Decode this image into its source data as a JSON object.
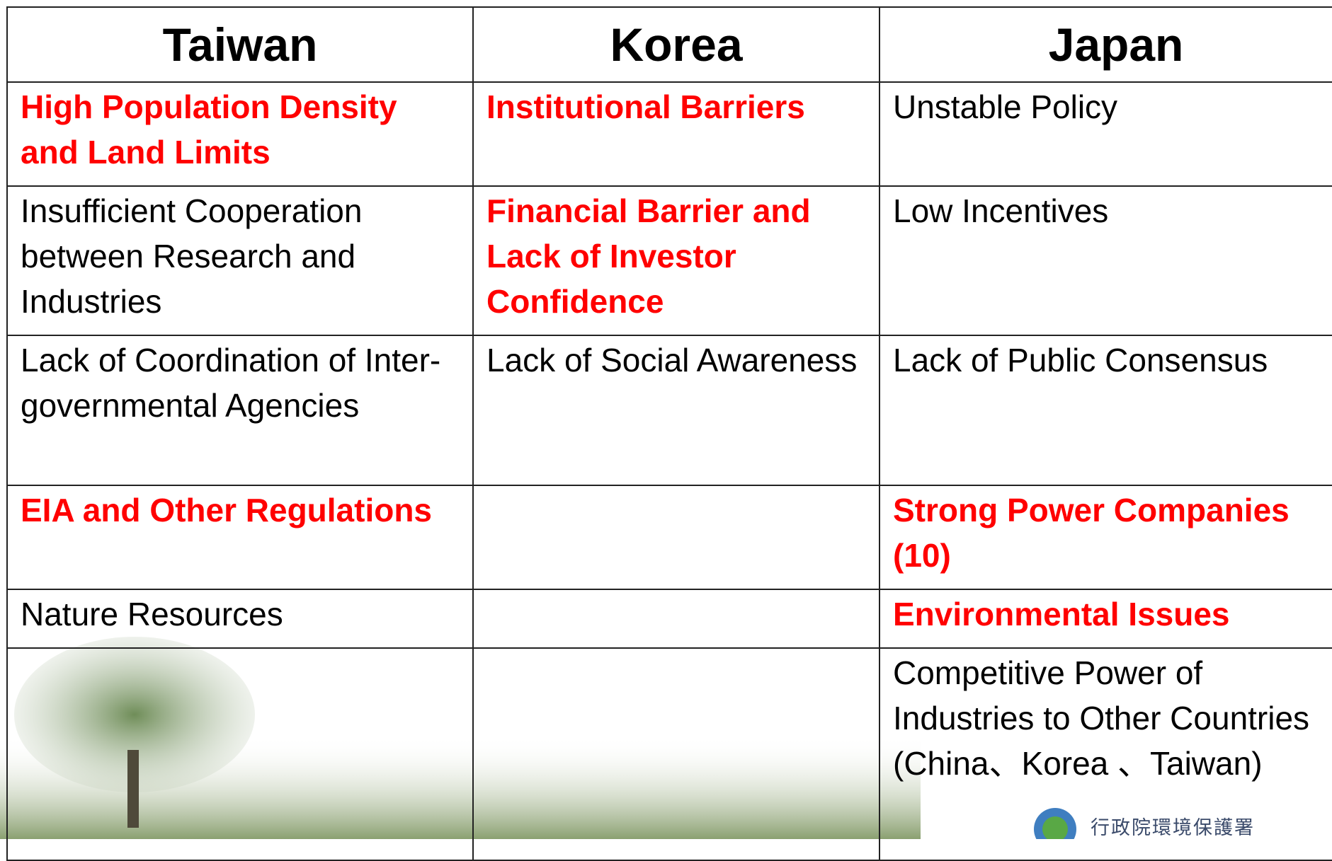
{
  "table": {
    "header": [
      "Taiwan",
      "Korea",
      "Japan"
    ],
    "rows": [
      [
        {
          "text": "High Population Density and Land Limits",
          "highlight": true
        },
        {
          "text": "Institutional Barriers",
          "highlight": true
        },
        {
          "text": "Unstable Policy",
          "highlight": false
        }
      ],
      [
        {
          "text": "Insufficient Cooperation between Research and Industries",
          "highlight": false
        },
        {
          "text": "Financial Barrier and Lack of Investor Confidence",
          "highlight": true
        },
        {
          "text": "Low Incentives",
          "highlight": false
        }
      ],
      [
        {
          "text": "Lack of Coordination of Inter-governmental Agencies",
          "highlight": false
        },
        {
          "text": "Lack of Social Awareness",
          "highlight": false
        },
        {
          "text": "Lack of Public Consensus",
          "highlight": false
        }
      ],
      [
        {
          "text": "EIA and Other Regulations",
          "highlight": true
        },
        null,
        {
          "text": "Strong Power Companies (10)",
          "highlight": true
        }
      ],
      [
        {
          "text": "Nature Resources",
          "highlight": false
        },
        null,
        {
          "text": "Environmental Issues",
          "highlight": true
        }
      ],
      [
        null,
        null,
        {
          "text": "Competitive Power of Industries to Other Countries (China、Korea 、Taiwan)",
          "highlight": false
        }
      ]
    ]
  },
  "logo_text": "行政院環境保護署"
}
